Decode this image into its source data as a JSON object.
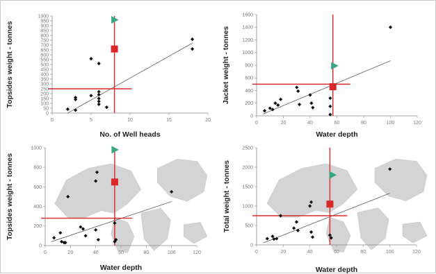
{
  "chart_data": [
    {
      "type": "scatter",
      "xlabel": "No. of Well heads",
      "ylabel": "Topsides weight - tonnes",
      "xlim": [
        0,
        20
      ],
      "ylim": [
        0,
        1000
      ],
      "xticks": [
        0,
        5,
        10,
        15,
        20
      ],
      "yticks": [
        0,
        50,
        100,
        150,
        200,
        250,
        300,
        350,
        400,
        450,
        500,
        550,
        600,
        650,
        700,
        750,
        800,
        850,
        900,
        950,
        1000
      ],
      "grid": false,
      "background_map": false,
      "series": [
        {
          "marker": "diamond",
          "color": "#111111",
          "points": [
            [
              2,
              40
            ],
            [
              3,
              30
            ],
            [
              3,
              160
            ],
            [
              3,
              140
            ],
            [
              5,
              560
            ],
            [
              5,
              180
            ],
            [
              6,
              510
            ],
            [
              6,
              220
            ],
            [
              6,
              190
            ],
            [
              6,
              150
            ],
            [
              6,
              120
            ],
            [
              6,
              90
            ],
            [
              7,
              60
            ],
            [
              18,
              760
            ],
            [
              18,
              660
            ]
          ]
        },
        {
          "marker": "square",
          "color": "#d8282a",
          "points": [
            [
              8,
              660
            ]
          ]
        },
        {
          "marker": "triangle-right",
          "color": "#3aa582",
          "points": [
            [
              8,
              960
            ]
          ]
        }
      ],
      "trend_line": [
        [
          2,
          0
        ],
        [
          18,
          720
        ]
      ],
      "reference_lines": {
        "x": 8,
        "y": 250,
        "color": "#d8282a"
      }
    },
    {
      "type": "scatter",
      "xlabel": "Water depth",
      "ylabel": "Jacket weight - tonnes",
      "xlim": [
        0,
        120
      ],
      "ylim": [
        0,
        1600
      ],
      "xticks": [
        0,
        20,
        40,
        60,
        80,
        100,
        120
      ],
      "yticks": [
        0,
        200,
        400,
        600,
        800,
        1000,
        1200,
        1400,
        1600
      ],
      "grid": false,
      "background_map": false,
      "series": [
        {
          "marker": "diamond",
          "color": "#111111",
          "points": [
            [
              6,
              80
            ],
            [
              10,
              120
            ],
            [
              12,
              100
            ],
            [
              14,
              200
            ],
            [
              16,
              170
            ],
            [
              18,
              260
            ],
            [
              30,
              450
            ],
            [
              31,
              390
            ],
            [
              32,
              180
            ],
            [
              40,
              330
            ],
            [
              41,
              200
            ],
            [
              42,
              130
            ],
            [
              55,
              280
            ],
            [
              55,
              150
            ],
            [
              55,
              20
            ],
            [
              100,
              1400
            ]
          ]
        },
        {
          "marker": "square",
          "color": "#d8282a",
          "points": [
            [
              57,
              460
            ]
          ]
        },
        {
          "marker": "triangle-right",
          "color": "#3aa582",
          "points": [
            [
              58,
              790
            ]
          ]
        }
      ],
      "trend_line": [
        [
          5,
          30
        ],
        [
          100,
          870
        ]
      ],
      "reference_lines": {
        "x": 57,
        "y": 500,
        "color": "#d8282a"
      }
    },
    {
      "type": "scatter",
      "xlabel": "Water depth",
      "ylabel": "Topsides weight - tonnes",
      "xlim": [
        0,
        120
      ],
      "ylim": [
        0,
        1000
      ],
      "xticks": [
        0,
        20,
        40,
        60,
        80,
        100,
        120
      ],
      "yticks": [
        0,
        200,
        400,
        600,
        800,
        1000
      ],
      "grid": false,
      "background_map": true,
      "series": [
        {
          "marker": "diamond",
          "color": "#111111",
          "points": [
            [
              7,
              80
            ],
            [
              12,
              130
            ],
            [
              13,
              40
            ],
            [
              15,
              30
            ],
            [
              16,
              30
            ],
            [
              18,
              500
            ],
            [
              28,
              190
            ],
            [
              30,
              170
            ],
            [
              32,
              100
            ],
            [
              40,
              660
            ],
            [
              41,
              750
            ],
            [
              40,
              160
            ],
            [
              42,
              60
            ],
            [
              55,
              230
            ],
            [
              55,
              40
            ],
            [
              56,
              60
            ],
            [
              100,
              550
            ]
          ]
        },
        {
          "marker": "square",
          "color": "#d8282a",
          "points": [
            [
              55,
              650
            ]
          ]
        },
        {
          "marker": "triangle-right",
          "color": "#3aa582",
          "points": [
            [
              55,
              980
            ]
          ]
        }
      ],
      "trend_line": [
        [
          5,
          40
        ],
        [
          100,
          450
        ]
      ],
      "reference_lines": {
        "x": 55,
        "y": 280,
        "color": "#d8282a"
      }
    },
    {
      "type": "scatter",
      "xlabel": "Water depth",
      "ylabel": "Total weight - tonnes",
      "xlim": [
        0,
        120
      ],
      "ylim": [
        0,
        2500
      ],
      "xticks": [
        0,
        20,
        40,
        60,
        80,
        100,
        120
      ],
      "yticks": [
        0,
        500,
        1000,
        1500,
        2000,
        2500
      ],
      "grid": false,
      "background_map": true,
      "series": [
        {
          "marker": "diamond",
          "color": "#111111",
          "points": [
            [
              8,
              160
            ],
            [
              12,
              220
            ],
            [
              13,
              150
            ],
            [
              15,
              160
            ],
            [
              18,
              750
            ],
            [
              28,
              430
            ],
            [
              30,
              590
            ],
            [
              31,
              370
            ],
            [
              40,
              1000
            ],
            [
              41,
              1100
            ],
            [
              41,
              330
            ],
            [
              42,
              200
            ],
            [
              55,
              250
            ],
            [
              56,
              180
            ],
            [
              100,
              1950
            ]
          ]
        },
        {
          "marker": "square",
          "color": "#d8282a",
          "points": [
            [
              55,
              1050
            ]
          ]
        },
        {
          "marker": "triangle-right",
          "color": "#3aa582",
          "points": [
            [
              57,
              1800
            ]
          ]
        }
      ],
      "trend_line": [
        [
          5,
          50
        ],
        [
          100,
          1330
        ]
      ],
      "reference_lines": {
        "x": 55,
        "y": 750,
        "color": "#d8282a"
      }
    }
  ],
  "colors": {
    "axis": "#888888",
    "trend": "#444444",
    "reference": "#d8282a",
    "map": "#d4d4d4",
    "map_edge": "#c6c6c6"
  }
}
